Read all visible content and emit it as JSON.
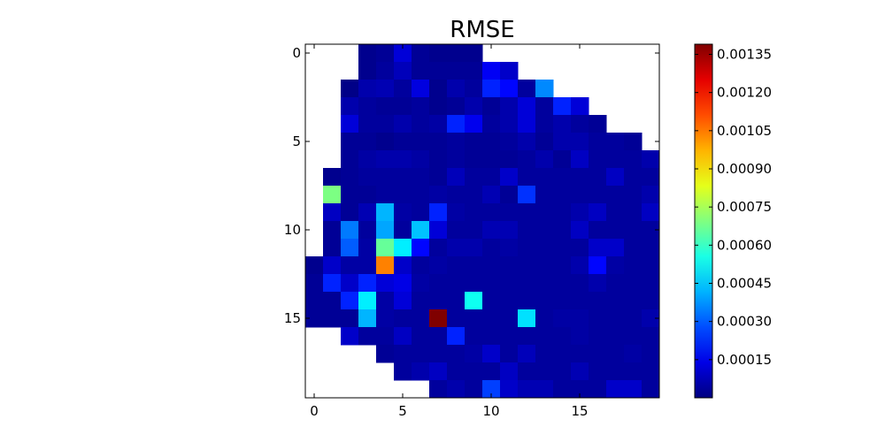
{
  "chart_data": {
    "type": "heatmap",
    "title": "RMSE",
    "xlabel": "",
    "ylabel": "",
    "rows": 20,
    "cols": 20,
    "x_ticks": [
      0,
      5,
      10,
      15
    ],
    "y_ticks": [
      0,
      5,
      10,
      15
    ],
    "xlim": [
      -0.5,
      19.5
    ],
    "ylim": [
      19.5,
      -0.5
    ],
    "y_axis_inverted": true,
    "colormap": "jet",
    "vmin": 0.0,
    "vmax": 0.00139,
    "colorbar_ticks": [
      "0.00015",
      "0.00030",
      "0.00045",
      "0.00060",
      "0.00075",
      "0.00090",
      "0.00105",
      "0.00120",
      "0.00135"
    ],
    "colorbar_tick_values": [
      0.00015,
      0.0003,
      0.00045,
      0.0006,
      0.00075,
      0.0009,
      0.00105,
      0.0012,
      0.00135
    ],
    "missing_value_note": "null = masked cell (rendered white)",
    "values": [
      [
        null,
        null,
        null,
        2e-05,
        3e-05,
        0.00012,
        3e-05,
        2e-05,
        2e-05,
        2e-05,
        null,
        null,
        null,
        null,
        null,
        null,
        null,
        null,
        null,
        null
      ],
      [
        null,
        null,
        null,
        2e-05,
        4e-05,
        8e-05,
        3e-05,
        3e-05,
        3e-05,
        3e-05,
        0.00016,
        0.0001,
        null,
        null,
        null,
        null,
        null,
        null,
        null,
        null
      ],
      [
        null,
        null,
        1e-05,
        6e-05,
        7e-05,
        4e-05,
        0.00013,
        2e-05,
        6e-05,
        4e-05,
        0.00022,
        0.00018,
        4e-05,
        0.00036,
        null,
        null,
        null,
        null,
        null,
        null
      ],
      [
        null,
        null,
        6e-05,
        4e-05,
        3e-05,
        3e-05,
        4e-05,
        2e-05,
        3e-05,
        6e-05,
        3e-05,
        6e-05,
        0.00012,
        4e-05,
        0.00022,
        0.00012,
        null,
        null,
        null,
        null
      ],
      [
        null,
        null,
        0.00012,
        4e-05,
        4e-05,
        6e-05,
        4e-05,
        5e-05,
        0.00022,
        0.00015,
        4e-05,
        6e-05,
        0.00012,
        4e-05,
        6e-05,
        4e-05,
        3e-05,
        null,
        null,
        null
      ],
      [
        null,
        null,
        3e-05,
        3e-05,
        2e-05,
        3e-05,
        3e-05,
        3e-05,
        4e-05,
        3e-05,
        3e-05,
        4e-05,
        6e-05,
        3e-05,
        6e-05,
        6e-05,
        4e-05,
        4e-05,
        3e-05,
        null
      ],
      [
        null,
        null,
        3e-05,
        5e-05,
        6e-05,
        6e-05,
        5e-05,
        3e-05,
        4e-05,
        3e-05,
        3e-05,
        3e-05,
        4e-05,
        6e-05,
        3e-05,
        9e-05,
        4e-05,
        4e-05,
        4e-05,
        6e-05
      ],
      [
        null,
        2e-05,
        3e-05,
        4e-05,
        4e-05,
        4e-05,
        4e-05,
        3e-05,
        8e-05,
        4e-05,
        4e-05,
        0.0001,
        4e-05,
        4e-05,
        4e-05,
        4e-05,
        4e-05,
        9e-05,
        4e-05,
        4e-05
      ],
      [
        null,
        0.00069,
        3e-05,
        3e-05,
        4e-05,
        4e-05,
        4e-05,
        5e-05,
        4e-05,
        4e-05,
        7e-05,
        3e-05,
        0.00024,
        4e-05,
        4e-05,
        4e-05,
        4e-05,
        4e-05,
        4e-05,
        6e-05
      ],
      [
        null,
        9e-05,
        3e-05,
        7e-05,
        0.00042,
        5e-05,
        4e-05,
        0.00022,
        5e-05,
        4e-05,
        4e-05,
        4e-05,
        4e-05,
        4e-05,
        4e-05,
        6e-05,
        9e-05,
        4e-05,
        4e-05,
        9e-05
      ],
      [
        null,
        3e-05,
        0.00034,
        4e-05,
        0.0004,
        4e-05,
        0.00044,
        0.00012,
        4e-05,
        4e-05,
        7e-05,
        7e-05,
        4e-05,
        4e-05,
        4e-05,
        9e-05,
        4e-05,
        4e-05,
        4e-05,
        4e-05
      ],
      [
        null,
        3e-05,
        0.0003,
        5e-05,
        0.00066,
        0.0005,
        0.00018,
        4e-05,
        6e-05,
        6e-05,
        4e-05,
        5e-05,
        4e-05,
        4e-05,
        4e-05,
        4e-05,
        0.0001,
        0.0001,
        4e-05,
        4e-05
      ],
      [
        2e-05,
        0.0001,
        5e-05,
        5e-05,
        0.00104,
        0.0001,
        4e-05,
        5e-05,
        4e-05,
        4e-05,
        4e-05,
        4e-05,
        4e-05,
        4e-05,
        4e-05,
        6e-05,
        0.00018,
        5e-05,
        4e-05,
        4e-05
      ],
      [
        3e-05,
        0.00022,
        0.0001,
        0.00022,
        0.00012,
        0.00014,
        5e-05,
        4e-05,
        4e-05,
        4e-05,
        4e-05,
        4e-05,
        4e-05,
        4e-05,
        4e-05,
        4e-05,
        6e-05,
        4e-05,
        4e-05,
        4e-05
      ],
      [
        3e-05,
        3e-05,
        0.00022,
        0.0005,
        5e-05,
        0.00012,
        4e-05,
        4e-05,
        4e-05,
        0.00054,
        4e-05,
        4e-05,
        4e-05,
        4e-05,
        4e-05,
        4e-05,
        4e-05,
        4e-05,
        4e-05,
        4e-05
      ],
      [
        3e-05,
        3e-05,
        3e-05,
        0.00042,
        5e-05,
        4e-05,
        4e-05,
        0.00139,
        4e-05,
        4e-05,
        4e-05,
        4e-05,
        0.00048,
        4e-05,
        5e-05,
        5e-05,
        4e-05,
        4e-05,
        4e-05,
        6e-05
      ],
      [
        null,
        null,
        0.0001,
        4e-05,
        4e-05,
        9e-05,
        4e-05,
        4e-05,
        0.00022,
        4e-05,
        4e-05,
        4e-05,
        4e-05,
        4e-05,
        4e-05,
        5e-05,
        4e-05,
        4e-05,
        4e-05,
        4e-05
      ],
      [
        null,
        null,
        null,
        null,
        3e-05,
        4e-05,
        4e-05,
        4e-05,
        4e-05,
        5e-05,
        0.0001,
        4e-05,
        8e-05,
        4e-05,
        4e-05,
        4e-05,
        4e-05,
        4e-05,
        5e-05,
        4e-05
      ],
      [
        null,
        null,
        null,
        null,
        null,
        4e-05,
        6e-05,
        9e-05,
        4e-05,
        4e-05,
        4e-05,
        9e-05,
        4e-05,
        4e-05,
        4e-05,
        7e-05,
        4e-05,
        4e-05,
        4e-05,
        4e-05
      ],
      [
        null,
        null,
        null,
        null,
        null,
        null,
        null,
        4e-05,
        6e-05,
        4e-05,
        0.00026,
        0.0001,
        7e-05,
        7e-05,
        4e-05,
        4e-05,
        4e-05,
        0.0001,
        0.0001,
        4e-05
      ]
    ]
  }
}
